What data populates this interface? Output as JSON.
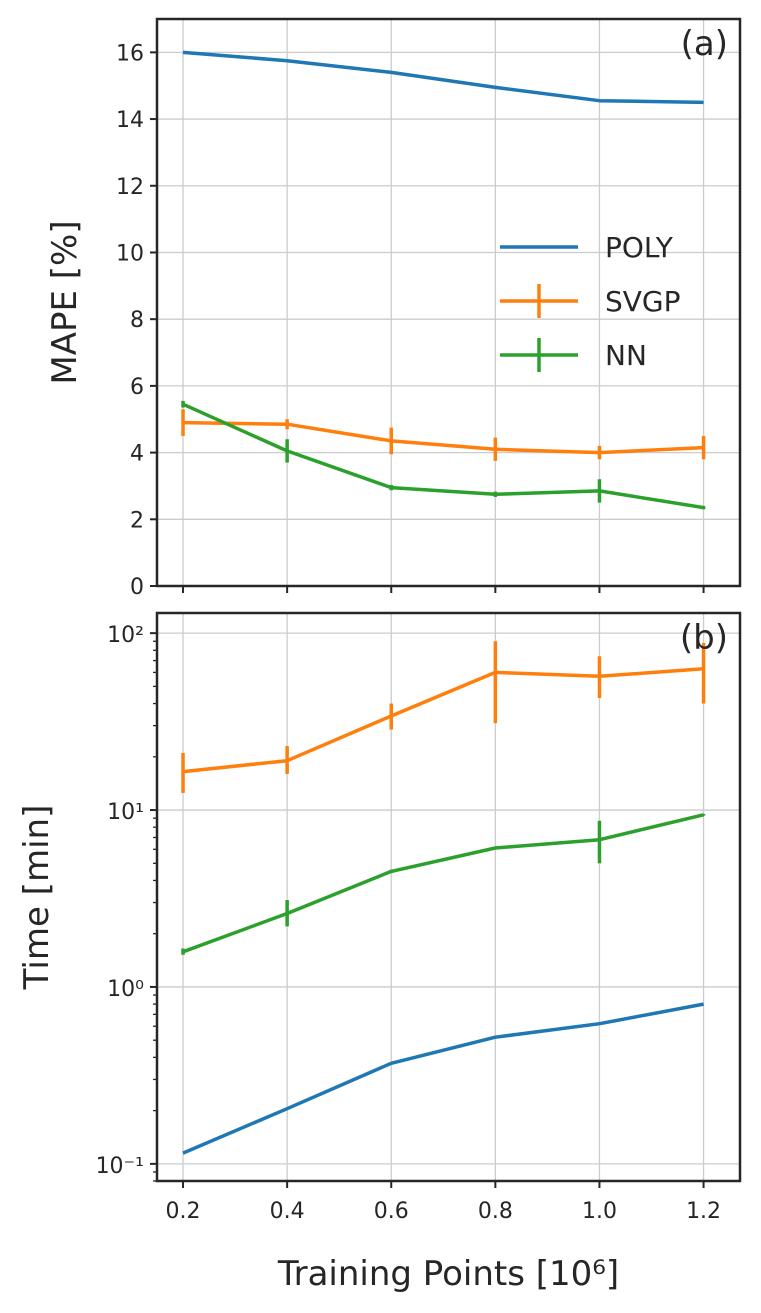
{
  "chart_data": [
    {
      "type": "line",
      "panel_label": "(a)",
      "ylabel": "MAPE [%]",
      "xlabel": "",
      "y_scale": "linear",
      "ylim": [
        0,
        17
      ],
      "xlim": [
        0.15,
        1.27
      ],
      "grid": true,
      "legend": "center-right",
      "x": [
        0.2,
        0.4,
        0.6,
        0.8,
        1.0,
        1.2
      ],
      "x_ticks": [
        "0.2",
        "0.4",
        "0.6",
        "0.8",
        "1.0",
        "1.2"
      ],
      "y_ticks": [
        "0",
        "2",
        "4",
        "6",
        "8",
        "10",
        "12",
        "14",
        "16"
      ],
      "series": [
        {
          "name": "POLY",
          "color": "#1f77b4",
          "values": [
            16.0,
            15.75,
            15.4,
            14.95,
            14.55,
            14.5
          ],
          "errors": null
        },
        {
          "name": "SVGP",
          "color": "#ff7f0e",
          "values": [
            4.9,
            4.85,
            4.35,
            4.1,
            4.0,
            4.15
          ],
          "errors": [
            0.4,
            0.15,
            0.4,
            0.35,
            0.2,
            0.35
          ]
        },
        {
          "name": "NN",
          "color": "#2ca02c",
          "values": [
            5.45,
            4.05,
            2.95,
            2.75,
            2.85,
            2.35
          ],
          "errors": [
            0.1,
            0.35,
            0.08,
            0.08,
            0.35,
            0.05
          ]
        }
      ]
    },
    {
      "type": "line",
      "panel_label": "(b)",
      "ylabel": "Time [min]",
      "xlabel": "Training Points [10⁶]",
      "y_scale": "log",
      "ylim": [
        0.08,
        130
      ],
      "xlim": [
        0.15,
        1.27
      ],
      "grid": true,
      "x": [
        0.2,
        0.4,
        0.6,
        0.8,
        1.0,
        1.2
      ],
      "x_ticks": [
        "0.2",
        "0.4",
        "0.6",
        "0.8",
        "1.0",
        "1.2"
      ],
      "y_ticks": [
        "10⁻¹",
        "10⁰",
        "10¹",
        "10²"
      ],
      "series": [
        {
          "name": "SVGP",
          "color": "#ff7f0e",
          "values": [
            16.5,
            19.0,
            34.0,
            60.0,
            57.0,
            63.0
          ],
          "lower": [
            12.5,
            16.0,
            28.5,
            31.0,
            43.0,
            40.0
          ],
          "upper": [
            21.0,
            23.0,
            40.0,
            90.0,
            74.0,
            88.0
          ]
        },
        {
          "name": "NN",
          "color": "#2ca02c",
          "values": [
            1.58,
            2.6,
            4.5,
            6.1,
            6.8,
            9.4
          ],
          "lower": [
            1.52,
            2.2,
            4.4,
            6.0,
            5.0,
            9.3
          ],
          "upper": [
            1.65,
            3.1,
            4.6,
            6.2,
            8.7,
            9.5
          ]
        },
        {
          "name": "POLY",
          "color": "#1f77b4",
          "values": [
            0.115,
            0.205,
            0.37,
            0.52,
            0.62,
            0.8
          ],
          "lower": null,
          "upper": null
        }
      ]
    }
  ]
}
